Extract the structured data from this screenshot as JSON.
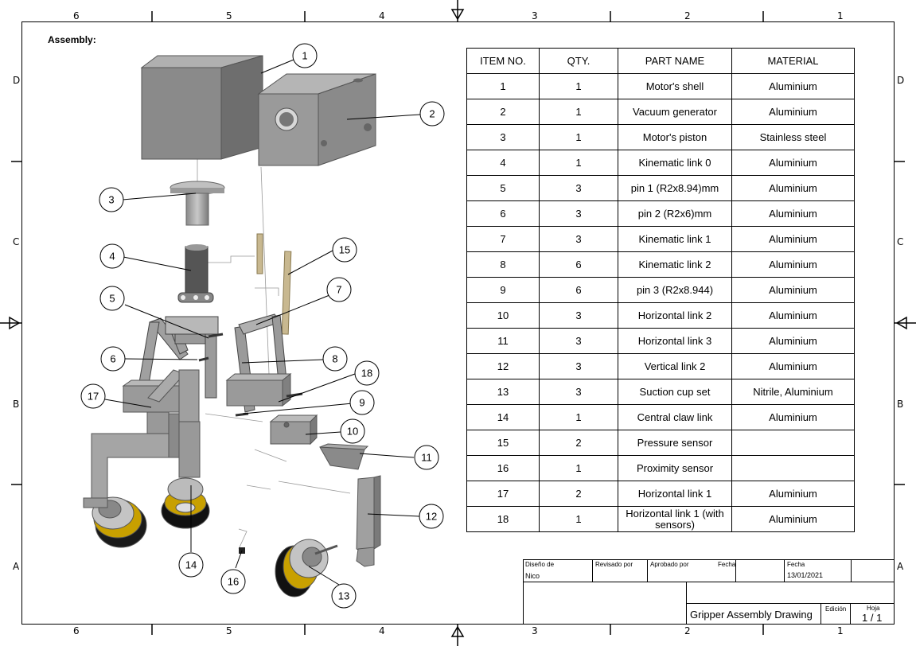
{
  "zones": {
    "columns": [
      "6",
      "5",
      "4",
      "3",
      "2",
      "1"
    ],
    "rows": [
      "D",
      "C",
      "B",
      "A"
    ]
  },
  "assembly_label": "Assembly:",
  "bom": {
    "headers": [
      "ITEM NO.",
      "QTY.",
      "PART NAME",
      "MATERIAL"
    ],
    "rows": [
      [
        "1",
        "1",
        "Motor's shell",
        "Aluminium"
      ],
      [
        "2",
        "1",
        "Vacuum generator",
        "Aluminium"
      ],
      [
        "3",
        "1",
        "Motor's piston",
        "Stainless steel"
      ],
      [
        "4",
        "1",
        "Kinematic link 0",
        "Aluminium"
      ],
      [
        "5",
        "3",
        "pin 1 (R2x8.94)mm",
        "Aluminium"
      ],
      [
        "6",
        "3",
        "pin 2 (R2x6)mm",
        "Aluminium"
      ],
      [
        "7",
        "3",
        "Kinematic link 1",
        "Aluminium"
      ],
      [
        "8",
        "6",
        "Kinematic link 2",
        "Aluminium"
      ],
      [
        "9",
        "6",
        "pin 3 (R2x8.944)",
        "Aluminium"
      ],
      [
        "10",
        "3",
        "Horizontal link 2",
        "Aluminium"
      ],
      [
        "11",
        "3",
        "Horizontal link 3",
        "Aluminium"
      ],
      [
        "12",
        "3",
        "Vertical link 2",
        "Aluminium"
      ],
      [
        "13",
        "3",
        "Suction cup set",
        "Nitrile, Aluminium"
      ],
      [
        "14",
        "1",
        "Central claw link",
        "Aluminium"
      ],
      [
        "15",
        "2",
        "Pressure sensor",
        ""
      ],
      [
        "16",
        "1",
        "Proximity sensor",
        ""
      ],
      [
        "17",
        "2",
        "Horizontal link 1",
        "Aluminium"
      ],
      [
        "18",
        "1",
        "Horizontal link 1 (with sensors)",
        "Aluminium"
      ]
    ]
  },
  "title_block": {
    "designed_by_label": "Diseño de",
    "designed_by": "Nico",
    "reviewed_by_label": "Revisado por",
    "approved_by_label": "Aprobado por",
    "date_label_1": "Fecha",
    "date_label_2": "Fecha",
    "date": "13/01/2021",
    "title": "Gripper Assembly Drawing",
    "edition_label": "Edición",
    "sheet_label": "Hoja",
    "sheet": "1 / 1"
  },
  "callouts": [
    "1",
    "2",
    "3",
    "4",
    "5",
    "6",
    "7",
    "8",
    "9",
    "10",
    "11",
    "12",
    "13",
    "14",
    "15",
    "16",
    "17",
    "18"
  ]
}
